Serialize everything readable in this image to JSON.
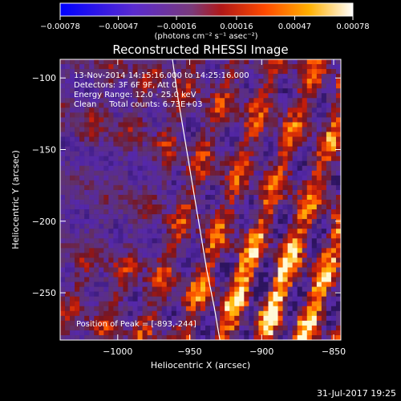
{
  "chart_data": {
    "type": "heatmap",
    "title": "Reconstructed RHESSI Image",
    "xlabel": "Heliocentric X (arcsec)",
    "ylabel": "Heliocentric Y (arcsec)",
    "xlim": [
      -1040,
      -845
    ],
    "ylim": [
      -283,
      -87
    ],
    "x_ticks": [
      -1000,
      -950,
      -900,
      -850
    ],
    "x_tick_labels": [
      "−1000",
      "−950",
      "−900",
      "−850"
    ],
    "y_ticks": [
      -100,
      -150,
      -200,
      -250
    ],
    "y_tick_labels": [
      "−100",
      "−150",
      "−200",
      "−250"
    ],
    "colorbar": {
      "range": [
        -0.00078,
        0.00078
      ],
      "ticks": [
        -0.00078,
        -0.00047,
        -0.00016,
        0.00016,
        0.00047,
        0.00078
      ],
      "tick_labels": [
        "−0.00078",
        "−0.00047",
        "−0.00016",
        "0.00016",
        "0.00047",
        "0.00078"
      ],
      "units": "(photons cm⁻² s⁻¹ asec⁻²)"
    },
    "annotations": {
      "time": "13-Nov-2014 14:15:16.000 to 14:25:16.000",
      "detectors": "Detectors: 3F 6F 9F, Att 0",
      "energy": "Energy Range: 12.0 - 25.0 keV",
      "method": "Clean     Total counts: 6.73E+03",
      "peak": "Position of Peak = [-893,-244]"
    },
    "limb_curve": {
      "x": [
        -962,
        -958,
        -953,
        -948,
        -943,
        -938,
        -933,
        -929
      ],
      "y": [
        -87,
        -115,
        -145,
        -175,
        -205,
        -235,
        -260,
        -283
      ]
    },
    "colors": {
      "background": "#000000",
      "foreground": "#ffffff"
    }
  },
  "footer": {
    "timestamp": "31-Jul-2017 19:25"
  }
}
